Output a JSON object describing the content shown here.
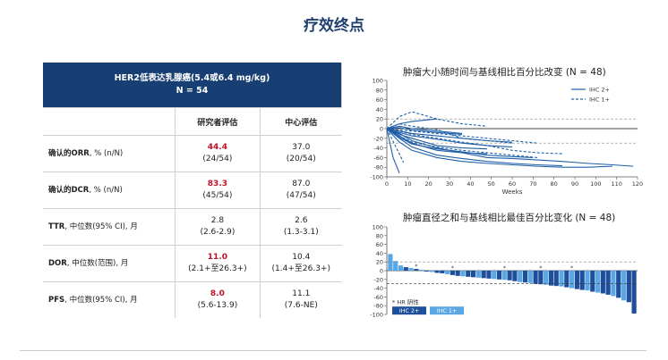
{
  "title": "疗效终点",
  "table": {
    "header_line1": "HER2低表达乳腺癌(5.4或6.4 mg/kg)",
    "header_line2": "N = 54",
    "col1": "研究者评估",
    "col2": "中心评估",
    "rows": [
      {
        "label_bold": "确认的ORR",
        "label_rest": ", % (n/N)",
        "v1_main": "44.4",
        "v1_sub": "(24/54)",
        "v1_red": true,
        "v2_main": "37.0",
        "v2_sub": "(20/54)"
      },
      {
        "label_bold": "确认的DCR",
        "label_rest": ", % (n/N)",
        "v1_main": "83.3",
        "v1_sub": "(45/54)",
        "v1_red": true,
        "v2_main": "87.0",
        "v2_sub": "(47/54)"
      },
      {
        "label_bold": "TTR",
        "label_rest": ", 中位数(95% CI), 月",
        "v1_main": "2.8",
        "v1_sub": "(2.6-2.9)",
        "v1_red": false,
        "v2_main": "2.6",
        "v2_sub": "(1.3-3.1)"
      },
      {
        "label_bold": "DOR",
        "label_rest": ", 中位数(范围), 月",
        "v1_main": "11.0",
        "v1_sub": "(2.1+至26.3+)",
        "v1_red": true,
        "v2_main": "10.4",
        "v2_sub": "(1.4+至26.3+)"
      },
      {
        "label_bold": "PFS",
        "label_rest": ", 中位数(95% CI), 月",
        "v1_main": "8.0",
        "v1_sub": "(5.6-13.9)",
        "v1_red": true,
        "v2_main": "11.1",
        "v2_sub": "(7.6-NE)"
      }
    ]
  },
  "chart_data": [
    {
      "type": "line",
      "title": "肿瘤大小随时间与基线相比百分比改变 (N = 48)",
      "xlabel": "Weeks",
      "ylabel": "",
      "xlim": [
        0,
        120
      ],
      "ylim": [
        -100,
        100
      ],
      "xticks": [
        "0",
        "10",
        "20",
        "30",
        "40",
        "50",
        "60",
        "70",
        "80",
        "90",
        "100",
        "110",
        "120"
      ],
      "yticks": [
        "100",
        "80",
        "60",
        "40",
        "20",
        "0",
        "-20",
        "-40",
        "-60",
        "-80",
        "-100"
      ],
      "reference_lines": [
        20,
        0,
        -30
      ],
      "legend": [
        "IHC 2+",
        "IHC 1+"
      ],
      "legend_position": "top-right",
      "colors": {
        "IHC 2+": "#1f5fa8",
        "IHC 1+": "#1f5fa8"
      },
      "series": [
        {
          "group": "IHC 2+",
          "x": [
            0,
            6,
            12,
            24,
            36,
            48
          ],
          "y": [
            0,
            -15,
            -30,
            -45,
            -50,
            -52
          ]
        },
        {
          "group": "IHC 2+",
          "x": [
            0,
            6,
            12,
            24,
            36,
            48,
            60,
            72,
            84
          ],
          "y": [
            0,
            -20,
            -38,
            -55,
            -62,
            -68,
            -72,
            -75,
            -77
          ]
        },
        {
          "group": "IHC 2+",
          "x": [
            0,
            6,
            12,
            24,
            36,
            48,
            60,
            72,
            84,
            96,
            108
          ],
          "y": [
            0,
            -28,
            -45,
            -60,
            -68,
            -72,
            -75,
            -78,
            -80,
            -80,
            -78
          ]
        },
        {
          "group": "IHC 2+",
          "x": [
            0,
            6,
            12,
            24,
            36,
            48,
            60,
            72,
            84,
            96,
            108,
            118
          ],
          "y": [
            0,
            -10,
            -25,
            -40,
            -50,
            -60,
            -62,
            -65,
            -68,
            -72,
            -75,
            -78
          ]
        },
        {
          "group": "IHC 2+",
          "x": [
            0,
            6,
            12,
            24,
            36,
            48,
            60
          ],
          "y": [
            0,
            -5,
            -10,
            -15,
            -20,
            -25,
            -28
          ]
        },
        {
          "group": "IHC 2+",
          "x": [
            0,
            6,
            12,
            24,
            36
          ],
          "y": [
            0,
            5,
            0,
            -5,
            -10
          ]
        },
        {
          "group": "IHC 2+",
          "x": [
            0,
            6,
            12,
            24
          ],
          "y": [
            0,
            10,
            15,
            20
          ]
        },
        {
          "group": "IHC 2+",
          "x": [
            0,
            6,
            12,
            24,
            36,
            48,
            60
          ],
          "y": [
            0,
            -8,
            -15,
            -22,
            -30,
            -35,
            -38
          ]
        },
        {
          "group": "IHC 2+",
          "x": [
            0,
            6,
            12,
            24,
            36,
            48
          ],
          "y": [
            0,
            -12,
            -20,
            -35,
            -40,
            -42
          ]
        },
        {
          "group": "IHC 2+",
          "x": [
            0,
            6,
            12,
            24,
            36,
            48,
            60,
            70
          ],
          "y": [
            0,
            -18,
            -32,
            -42,
            -48,
            -55,
            -58,
            -60
          ]
        },
        {
          "group": "IHC 2+",
          "x": [
            0,
            3,
            6
          ],
          "y": [
            0,
            -60,
            -92
          ]
        },
        {
          "group": "IHC 2+",
          "x": [
            0,
            6,
            12,
            24,
            36
          ],
          "y": [
            0,
            2,
            -3,
            -8,
            -12
          ]
        },
        {
          "group": "IHC 1+",
          "x": [
            0,
            6,
            12,
            24,
            36,
            48,
            60,
            72
          ],
          "y": [
            0,
            -15,
            -28,
            -38,
            -45,
            -50,
            -55,
            -60
          ]
        },
        {
          "group": "IHC 1+",
          "x": [
            0,
            6,
            12,
            24,
            36,
            48,
            60
          ],
          "y": [
            0,
            10,
            5,
            -2,
            -20,
            -25,
            -30
          ]
        },
        {
          "group": "IHC 1+",
          "x": [
            0,
            6,
            12,
            24,
            36,
            48,
            60,
            72,
            84
          ],
          "y": [
            0,
            -5,
            -12,
            -20,
            -28,
            -35,
            -45,
            -50,
            -52
          ]
        },
        {
          "group": "IHC 1+",
          "x": [
            0,
            6,
            12,
            24,
            36,
            48
          ],
          "y": [
            0,
            25,
            35,
            20,
            10,
            5
          ]
        },
        {
          "group": "IHC 1+",
          "x": [
            0,
            6,
            12,
            24,
            36,
            48,
            60,
            72
          ],
          "y": [
            0,
            -3,
            -5,
            -10,
            -15,
            -20,
            -25,
            -30
          ]
        },
        {
          "group": "IHC 1+",
          "x": [
            0,
            4,
            8
          ],
          "y": [
            0,
            -35,
            -70
          ]
        }
      ]
    },
    {
      "type": "bar",
      "title": "肿瘤直径之和与基线相比最佳百分比变化 (N = 48)",
      "xlabel": "",
      "ylabel": "",
      "ylim": [
        -100,
        100
      ],
      "yticks": [
        "100",
        "80",
        "60",
        "40",
        "20",
        "0",
        "-20",
        "-40",
        "-60",
        "-80",
        "-100"
      ],
      "reference_lines": [
        20,
        -30
      ],
      "legend": [
        "IHC 2+",
        "IHC 1+"
      ],
      "legend_position": "bottom-left",
      "legend_note": "* HR 阴性",
      "colors": {
        "IHC 2+": "#1f4f9a",
        "IHC 1+": "#5aa7e6"
      },
      "values": [
        38,
        22,
        12,
        8,
        6,
        4,
        2,
        -2,
        -3,
        -5,
        -6,
        -8,
        -10,
        -12,
        -13,
        -14,
        -15,
        -16,
        -17,
        -18,
        -19,
        -20,
        -21,
        -22,
        -24,
        -26,
        -27,
        -28,
        -30,
        -31,
        -32,
        -34,
        -35,
        -36,
        -38,
        -40,
        -42,
        -44,
        -45,
        -48,
        -50,
        -52,
        -55,
        -58,
        -62,
        -68,
        -72,
        -98
      ],
      "groups": [
        "IHC 1+",
        "IHC 1+",
        "IHC 1+",
        "IHC 2+",
        "IHC 1+",
        "IHC 2+",
        "IHC 1+",
        "IHC 2+",
        "IHC 1+",
        "IHC 2+",
        "IHC 2+",
        "IHC 1+",
        "IHC 2+",
        "IHC 2+",
        "IHC 1+",
        "IHC 2+",
        "IHC 2+",
        "IHC 1+",
        "IHC 2+",
        "IHC 2+",
        "IHC 1+",
        "IHC 2+",
        "IHC 1+",
        "IHC 2+",
        "IHC 2+",
        "IHC 1+",
        "IHC 2+",
        "IHC 1+",
        "IHC 2+",
        "IHC 2+",
        "IHC 1+",
        "IHC 2+",
        "IHC 2+",
        "IHC 1+",
        "IHC 2+",
        "IHC 1+",
        "IHC 2+",
        "IHC 2+",
        "IHC 1+",
        "IHC 2+",
        "IHC 1+",
        "IHC 2+",
        "IHC 2+",
        "IHC 1+",
        "IHC 2+",
        "IHC 1+",
        "IHC 2+",
        "IHC 2+"
      ],
      "hr_negative_marks": [
        5,
        12,
        22,
        29,
        35
      ]
    }
  ]
}
